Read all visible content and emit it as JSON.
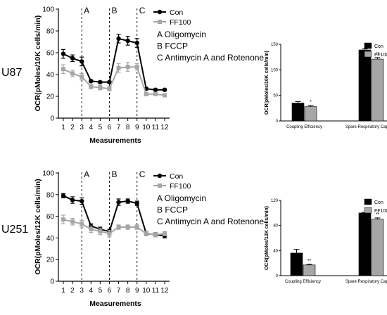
{
  "figure": {
    "row_labels": [
      "U87",
      "U251"
    ]
  },
  "chart_data": [
    {
      "type": "line",
      "panel": "U87 OCR time course",
      "ylabel": "OCR(pMoles/10K cells/min)",
      "xlabel": "Measurements",
      "x": [
        1,
        2,
        3,
        4,
        5,
        6,
        7,
        8,
        9,
        10,
        11,
        12
      ],
      "ylim": [
        0,
        100
      ],
      "yticks": [
        0,
        20,
        40,
        60,
        80,
        100
      ],
      "phases": [
        {
          "label": "A",
          "after": 3
        },
        {
          "label": "B",
          "after": 6
        },
        {
          "label": "C",
          "after": 9
        }
      ],
      "annotations": [
        "A Oligomycin",
        "B FCCP",
        "C Antimycin A and Rotenone"
      ],
      "legend_position": "top-right",
      "series": [
        {
          "name": "Con",
          "color": "#000000",
          "marker": "circle",
          "values": [
            59,
            55,
            52,
            34,
            33,
            33,
            73,
            71,
            69,
            27,
            26,
            26
          ],
          "errors": [
            4,
            3,
            4,
            1,
            1,
            1,
            4,
            4,
            4,
            1,
            1,
            1
          ]
        },
        {
          "name": "FF100",
          "color": "#a6a6a6",
          "marker": "square",
          "values": [
            45,
            41,
            38,
            29,
            28,
            27,
            46,
            47,
            47,
            22,
            22,
            21
          ],
          "errors": [
            4,
            3,
            3,
            2,
            2,
            2,
            4,
            4,
            3,
            1,
            1,
            1
          ]
        }
      ]
    },
    {
      "type": "bar",
      "panel": "U87 summary",
      "ylabel": "OCR(pMoles/10K cells/min)",
      "categories": [
        "Coupling Efficiency",
        "Spare Respiratory Capacity"
      ],
      "ylim": [
        0,
        150
      ],
      "yticks": [
        0,
        50,
        100,
        150
      ],
      "legend_position": "top-right",
      "series": [
        {
          "name": "Con",
          "color": "#000000",
          "values": [
            35,
            139
          ],
          "errors": [
            3,
            2
          ]
        },
        {
          "name": "FF100",
          "color": "#a6a6a6",
          "values": [
            28,
            121
          ],
          "errors": [
            2,
            3
          ]
        }
      ],
      "significance": [
        "*",
        "**"
      ]
    },
    {
      "type": "line",
      "panel": "U251 OCR time course",
      "ylabel": "OCR(pMoles/12K cells/min)",
      "xlabel": "Measurements",
      "x": [
        1,
        2,
        3,
        4,
        5,
        6,
        7,
        8,
        9,
        10,
        11,
        12
      ],
      "ylim": [
        0,
        100
      ],
      "yticks": [
        0,
        20,
        40,
        60,
        80,
        100
      ],
      "phases": [
        {
          "label": "A",
          "after": 3
        },
        {
          "label": "B",
          "after": 6
        },
        {
          "label": "C",
          "after": 9
        }
      ],
      "annotations": [
        "A Oligomycin",
        "B FCCP",
        "C Antimycin A and Rotenone"
      ],
      "legend_position": "top-right",
      "series": [
        {
          "name": "Con",
          "color": "#000000",
          "marker": "circle",
          "values": [
            79,
            75,
            74,
            51,
            48,
            46,
            73,
            74,
            72,
            44,
            43,
            42
          ],
          "errors": [
            2,
            3,
            3,
            2,
            2,
            2,
            3,
            2,
            2,
            2,
            2,
            2
          ]
        },
        {
          "name": "FF100",
          "color": "#a6a6a6",
          "marker": "square",
          "values": [
            57,
            55,
            53,
            48,
            46,
            44,
            50,
            50,
            50,
            44,
            43,
            44
          ],
          "errors": [
            4,
            3,
            3,
            3,
            3,
            3,
            2,
            2,
            2,
            2,
            2,
            2
          ]
        }
      ]
    },
    {
      "type": "bar",
      "panel": "U251 summary",
      "ylabel": "OCR(pMoles/12K cells/min)",
      "categories": [
        "Coupling Efficiency",
        "Spare Respiratory Capacity"
      ],
      "ylim": [
        0,
        120
      ],
      "yticks": [
        0,
        40,
        80,
        120
      ],
      "legend_position": "top-right",
      "series": [
        {
          "name": "Con",
          "color": "#000000",
          "values": [
            36,
            100
          ],
          "errors": [
            6,
            1
          ]
        },
        {
          "name": "FF100",
          "color": "#a6a6a6",
          "values": [
            17,
            90
          ],
          "errors": [
            1,
            2
          ]
        }
      ],
      "significance": [
        "**",
        "**"
      ]
    }
  ]
}
